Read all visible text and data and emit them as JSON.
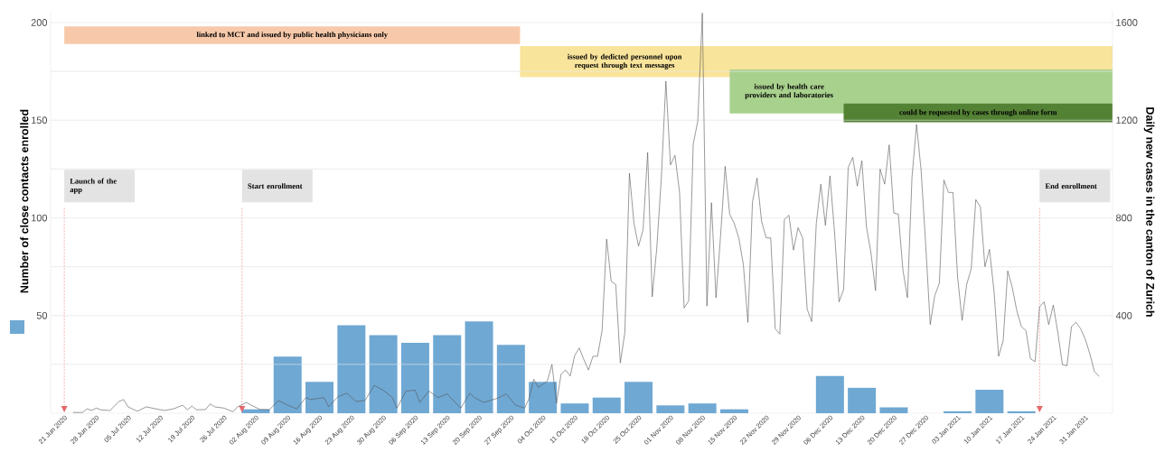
{
  "chart_data": {
    "type": "bar",
    "xlabel": null,
    "ylabel": "Number of close contacts enrolled",
    "y2label": "Daily new cases in the canton of Zurich",
    "xlim": [
      "2020-06-18",
      "2021-02-06"
    ],
    "xticks": [
      {
        "value": "2020-06-21",
        "label": "21 Jun 2020"
      },
      {
        "value": "2020-06-28",
        "label": "28 Jun 2020"
      },
      {
        "value": "2020-07-05",
        "label": "05 Jul 2020"
      },
      {
        "value": "2020-07-12",
        "label": "12 Jul 2020"
      },
      {
        "value": "2020-07-19",
        "label": "19 Jul 2020"
      },
      {
        "value": "2020-07-26",
        "label": "26 Jul 2020"
      },
      {
        "value": "2020-08-02",
        "label": "02 Aug 2020"
      },
      {
        "value": "2020-08-09",
        "label": "09 Aug 2020"
      },
      {
        "value": "2020-08-16",
        "label": "16 Aug 2020"
      },
      {
        "value": "2020-08-23",
        "label": "23 Aug 2020"
      },
      {
        "value": "2020-08-30",
        "label": "30 Aug 2020"
      },
      {
        "value": "2020-09-06",
        "label": "06 Sep 2020"
      },
      {
        "value": "2020-09-13",
        "label": "13 Sep 2020"
      },
      {
        "value": "2020-09-20",
        "label": "20 Sep 2020"
      },
      {
        "value": "2020-09-27",
        "label": "27 Sep 2020"
      },
      {
        "value": "2020-10-04",
        "label": "04 Oct 2020"
      },
      {
        "value": "2020-10-11",
        "label": "11 Oct 2020"
      },
      {
        "value": "2020-10-18",
        "label": "18 Oct 2020"
      },
      {
        "value": "2020-10-25",
        "label": "25 Oct 2020"
      },
      {
        "value": "2020-11-01",
        "label": "01 Nov 2020"
      },
      {
        "value": "2020-11-08",
        "label": "08 Nov 2020"
      },
      {
        "value": "2020-11-15",
        "label": "15 Nov 2020"
      },
      {
        "value": "2020-11-22",
        "label": "22 Nov 2020"
      },
      {
        "value": "2020-11-29",
        "label": "29 Nov 2020"
      },
      {
        "value": "2020-12-06",
        "label": "06 Dec 2020"
      },
      {
        "value": "2020-12-13",
        "label": "13 Dec 2020"
      },
      {
        "value": "2020-12-20",
        "label": "20 Dec 2020"
      },
      {
        "value": "2020-12-27",
        "label": "27 Dec 2020"
      },
      {
        "value": "2021-01-03",
        "label": "03 Jan 2021"
      },
      {
        "value": "2021-01-10",
        "label": "10 Jan 2021"
      },
      {
        "value": "2021-01-17",
        "label": "17 Jan 2021"
      },
      {
        "value": "2021-01-24",
        "label": "24 Jan 2021"
      },
      {
        "value": "2021-01-31",
        "label": "31 Jan 2021"
      }
    ],
    "ylim": [
      0,
      206
    ],
    "yticks": [
      {
        "value": 25,
        "label": null
      },
      50,
      {
        "value": 75,
        "label": null
      },
      100,
      {
        "value": 125,
        "label": null
      },
      150,
      {
        "value": 175,
        "label": null
      },
      200
    ],
    "y2lim": [
      0,
      1648
    ],
    "y2ticks": [
      {
        "value": 200,
        "label": null
      },
      400,
      {
        "value": 600,
        "label": null
      },
      800,
      {
        "value": 1000,
        "label": null
      },
      1200,
      {
        "value": 1400,
        "label": null
      },
      1600
    ],
    "grid": "y",
    "series": [
      {
        "color": "#6fa8d3",
        "x": [
          "2020-08-02",
          "2020-08-09",
          "2020-08-16",
          "2020-08-23",
          "2020-08-30",
          "2020-09-06",
          "2020-09-13",
          "2020-09-20",
          "2020-09-27",
          "2020-10-04",
          "2020-10-11",
          "2020-10-18",
          "2020-10-25",
          "2020-11-01",
          "2020-11-08",
          "2020-11-15",
          "2020-11-22",
          "2020-11-29",
          "2020-12-06",
          "2020-12-13",
          "2020-12-20",
          "2020-12-27",
          "2021-01-03",
          "2021-01-10",
          "2021-01-17"
        ],
        "values": [
          2,
          29,
          16,
          45,
          40,
          36,
          40,
          47,
          35,
          16,
          5,
          8,
          16,
          4,
          5,
          2,
          0,
          0,
          19,
          13,
          3,
          0,
          1,
          12,
          1
        ]
      },
      {
        "type": "line",
        "axis": "y2",
        "color": "#555555",
        "marker": "none",
        "line_style": "solid",
        "x": [
          "2020-06-23",
          "2020-06-25",
          "2020-06-26",
          "2020-06-27",
          "2020-06-28",
          "2020-06-29",
          "2020-07-01",
          "2020-07-03",
          "2020-07-04",
          "2020-07-05",
          "2020-07-07",
          "2020-07-09",
          "2020-07-11",
          "2020-07-13",
          "2020-07-15",
          "2020-07-17",
          "2020-07-18",
          "2020-07-19",
          "2020-07-20",
          "2020-07-22",
          "2020-07-23",
          "2020-07-24",
          "2020-07-26",
          "2020-07-28",
          "2020-07-29",
          "2020-07-31",
          "2020-08-01",
          "2020-08-03",
          "2020-08-05",
          "2020-08-07",
          "2020-08-09",
          "2020-08-11",
          "2020-08-13",
          "2020-08-14",
          "2020-08-17",
          "2020-08-18",
          "2020-08-20",
          "2020-08-22",
          "2020-08-24",
          "2020-08-26",
          "2020-08-28",
          "2020-08-30",
          "2020-09-01",
          "2020-09-02",
          "2020-09-04",
          "2020-09-06",
          "2020-09-07",
          "2020-09-09",
          "2020-09-11",
          "2020-09-13",
          "2020-09-16",
          "2020-09-18",
          "2020-09-19",
          "2020-09-21",
          "2020-09-24",
          "2020-09-26",
          "2020-09-28",
          "2020-09-30",
          "2020-10-01",
          "2020-10-02",
          "2020-10-03",
          "2020-10-05",
          "2020-10-06",
          "2020-10-07",
          "2020-10-08",
          "2020-10-09",
          "2020-10-10",
          "2020-10-11",
          "2020-10-12",
          "2020-10-13",
          "2020-10-14",
          "2020-10-15",
          "2020-10-16",
          "2020-10-17",
          "2020-10-18",
          "2020-10-19",
          "2020-10-20",
          "2020-10-21",
          "2020-10-22",
          "2020-10-23",
          "2020-10-24",
          "2020-10-25",
          "2020-10-26",
          "2020-10-27",
          "2020-10-28",
          "2020-10-29",
          "2020-10-30",
          "2020-10-31",
          "2020-11-01",
          "2020-11-02",
          "2020-11-03",
          "2020-11-04",
          "2020-11-05",
          "2020-11-06",
          "2020-11-07",
          "2020-11-08",
          "2020-11-09",
          "2020-11-10",
          "2020-11-11",
          "2020-11-12",
          "2020-11-13",
          "2020-11-14",
          "2020-11-15",
          "2020-11-16",
          "2020-11-17",
          "2020-11-18",
          "2020-11-19",
          "2020-11-20",
          "2020-11-21",
          "2020-11-22",
          "2020-11-23",
          "2020-11-24",
          "2020-11-25",
          "2020-11-26",
          "2020-11-27",
          "2020-11-28",
          "2020-11-29",
          "2020-11-30",
          "2020-12-01",
          "2020-12-02",
          "2020-12-03",
          "2020-12-04",
          "2020-12-05",
          "2020-12-06",
          "2020-12-07",
          "2020-12-08",
          "2020-12-09",
          "2020-12-10",
          "2020-12-11",
          "2020-12-12",
          "2020-12-13",
          "2020-12-14",
          "2020-12-15",
          "2020-12-16",
          "2020-12-17",
          "2020-12-18",
          "2020-12-19",
          "2020-12-20",
          "2020-12-21",
          "2020-12-22",
          "2020-12-23",
          "2020-12-24",
          "2020-12-25",
          "2020-12-26",
          "2020-12-27",
          "2020-12-28",
          "2020-12-29",
          "2020-12-30",
          "2020-12-31",
          "2021-01-01",
          "2021-01-02",
          "2021-01-03",
          "2021-01-04",
          "2021-01-05",
          "2021-01-06",
          "2021-01-07",
          "2021-01-08",
          "2021-01-09",
          "2021-01-10",
          "2021-01-11",
          "2021-01-12",
          "2021-01-13",
          "2021-01-14",
          "2021-01-15",
          "2021-01-16",
          "2021-01-17",
          "2021-01-18",
          "2021-01-19",
          "2021-01-20",
          "2021-01-21",
          "2021-01-22",
          "2021-01-23",
          "2021-01-24",
          "2021-01-25",
          "2021-01-26",
          "2021-01-27",
          "2021-01-28",
          "2021-01-29",
          "2021-01-30",
          "2021-01-31",
          "2021-02-01",
          "2021-02-02",
          "2021-02-03"
        ],
        "values": [
          3,
          3,
          18,
          11,
          21,
          14,
          11,
          48,
          56,
          26,
          8,
          26,
          18,
          11,
          18,
          33,
          14,
          29,
          14,
          15,
          38,
          26,
          21,
          6,
          26,
          44,
          33,
          15,
          14,
          52,
          33,
          18,
          64,
          56,
          64,
          26,
          67,
          82,
          48,
          52,
          114,
          94,
          64,
          21,
          91,
          94,
          44,
          91,
          64,
          79,
          21,
          82,
          64,
          44,
          61,
          79,
          33,
          21,
          61,
          139,
          106,
          132,
          200,
          41,
          160,
          177,
          152,
          237,
          267,
          220,
          177,
          233,
          233,
          338,
          713,
          540,
          527,
          206,
          330,
          983,
          777,
          684,
          752,
          1068,
          477,
          676,
          963,
          1360,
          1017,
          1056,
          904,
          431,
          460,
          1102,
          1197,
          1639,
          439,
          862,
          473,
          727,
          1011,
          815,
          777,
          718,
          608,
          372,
          865,
          963,
          786,
          718,
          718,
          346,
          324,
          794,
          811,
          668,
          760,
          718,
          426,
          375,
          777,
          938,
          769,
          972,
          743,
          456,
          507,
          1006,
          1048,
          930,
          1034,
          764,
          656,
          502,
          1000,
          938,
          1099,
          820,
          815,
          588,
          473,
          967,
          1183,
          994,
          693,
          363,
          482,
          532,
          955,
          904,
          904,
          558,
          380,
          527,
          592,
          875,
          845,
          600,
          671,
          499,
          233,
          296,
          583,
          515,
          419,
          355,
          338,
          223,
          211,
          436,
          456,
          363,
          443,
          330,
          199,
          194,
          355,
          372,
          346,
          304,
          245,
          172,
          152
        ]
      }
    ],
    "bands": [
      {
        "axis": "x",
        "from": "2020-06-21",
        "to": "2020-09-29",
        "label": "linked to MCT and issued by public health physicians only",
        "color": "#f7c9aa"
      },
      {
        "axis": "x",
        "from": "2020-09-29",
        "to": "2021-02-06",
        "label": "issued by dedicted personnel upon request through text messages",
        "color": "#f9e49b"
      },
      {
        "axis": "x",
        "from": "2020-11-14",
        "to": "2021-02-06",
        "label": "issued by health care providers and laboratories",
        "color": "#a9d18e"
      },
      {
        "axis": "x",
        "from": "2020-12-09",
        "to": "2021-02-06",
        "label": "could be requested by cases through online form",
        "color": "#548235"
      }
    ],
    "ref_lines": [
      {
        "axis": "x",
        "value": "2020-06-21",
        "label": "Launch of the app",
        "color": "#e26869",
        "line_style": "dashed"
      },
      {
        "axis": "x",
        "value": "2020-07-30",
        "label": "Start enrollment",
        "color": "#e26869",
        "line_style": "dashed"
      },
      {
        "axis": "x",
        "value": "2021-01-21",
        "label": "End enrollment",
        "color": "#e26869",
        "line_style": "dashed"
      }
    ]
  }
}
